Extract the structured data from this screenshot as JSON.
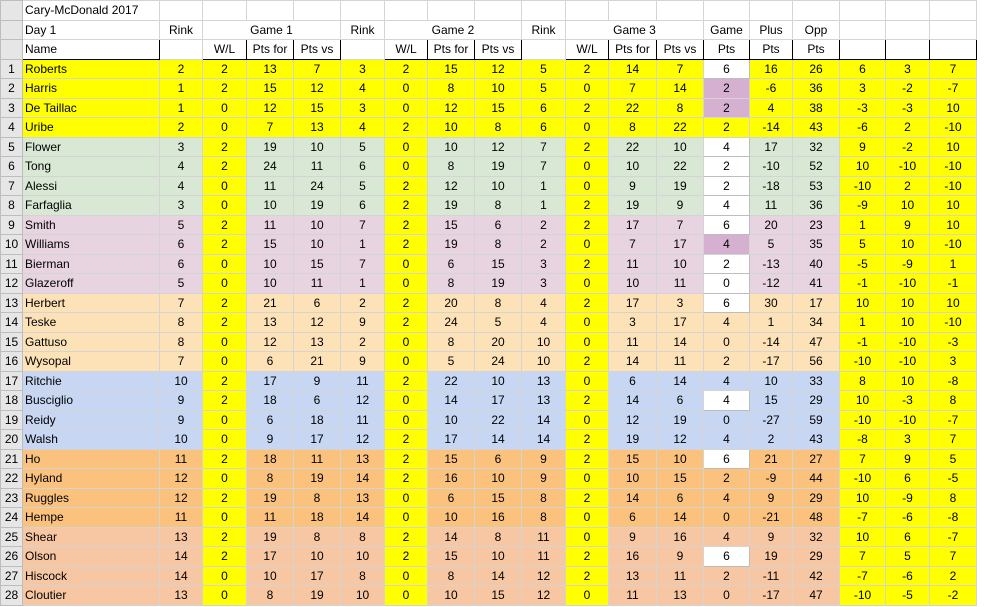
{
  "title_row": {
    "title": "Cary-McDonald 2017"
  },
  "header1": {
    "day": "Day 1",
    "rink1": "Rink",
    "game1": "Game 1",
    "rink2": "Rink",
    "game2": "Game 2",
    "rink3": "Rink",
    "game3": "Game 3",
    "game": "Game",
    "plus": "Plus",
    "opp": "Opp"
  },
  "header2": {
    "name": "Name",
    "wl1": "W/L",
    "pf1": "Pts for",
    "pv1": "Pts vs",
    "wl2": "W/L",
    "pf2": "Pts for",
    "pv2": "Pts vs",
    "wl3": "W/L",
    "pf3": "Pts for",
    "pv3": "Pts vs",
    "pts": "Pts",
    "plus_pts": "Pts",
    "opp_pts": "Pts"
  },
  "colors": {
    "green": "#d8e8d4",
    "pink": "#e8d4e0",
    "peach": "#fde2b8",
    "blue": "#c7d6f2",
    "orange": "#fbc27e",
    "salmon": "#f7c7a3",
    "yellow": "#ffff00",
    "mauve": "#d6b0d0",
    "white": "#ffffff"
  },
  "rows": [
    {
      "n": "1",
      "name": "Roberts",
      "v": [
        "2",
        "2",
        "13",
        "7",
        "3",
        "2",
        "15",
        "12",
        "5",
        "2",
        "14",
        "7",
        "6",
        "16",
        "26",
        "6",
        "3",
        "7"
      ],
      "group": "yellow",
      "pts_bg": "white"
    },
    {
      "n": "2",
      "name": "Harris",
      "v": [
        "1",
        "2",
        "15",
        "12",
        "4",
        "0",
        "8",
        "10",
        "5",
        "0",
        "7",
        "14",
        "2",
        "-6",
        "36",
        "3",
        "-2",
        "-7"
      ],
      "group": "yellow",
      "pts_bg": "mauve"
    },
    {
      "n": "3",
      "name": "De Taillac",
      "v": [
        "1",
        "0",
        "12",
        "15",
        "3",
        "0",
        "12",
        "15",
        "6",
        "2",
        "22",
        "8",
        "2",
        "4",
        "38",
        "-3",
        "-3",
        "10"
      ],
      "group": "yellow",
      "pts_bg": "mauve"
    },
    {
      "n": "4",
      "name": "Uribe",
      "v": [
        "2",
        "0",
        "7",
        "13",
        "4",
        "2",
        "10",
        "8",
        "6",
        "0",
        "8",
        "22",
        "2",
        "-14",
        "43",
        "-6",
        "2",
        "-10"
      ],
      "group": "yellow",
      "pts_bg": "yellow"
    },
    {
      "n": "5",
      "name": "Flower",
      "v": [
        "3",
        "2",
        "19",
        "10",
        "5",
        "0",
        "10",
        "12",
        "7",
        "2",
        "22",
        "10",
        "4",
        "17",
        "32",
        "9",
        "-2",
        "10"
      ],
      "group": "green",
      "pts_bg": "white"
    },
    {
      "n": "6",
      "name": "Tong",
      "v": [
        "4",
        "2",
        "24",
        "11",
        "6",
        "0",
        "8",
        "19",
        "7",
        "0",
        "10",
        "22",
        "2",
        "-10",
        "52",
        "10",
        "-10",
        "-10"
      ],
      "group": "green",
      "pts_bg": "white"
    },
    {
      "n": "7",
      "name": "Alessi",
      "v": [
        "4",
        "0",
        "11",
        "24",
        "5",
        "2",
        "12",
        "10",
        "1",
        "0",
        "9",
        "19",
        "2",
        "-18",
        "53",
        "-10",
        "2",
        "-10"
      ],
      "group": "green",
      "pts_bg": "white"
    },
    {
      "n": "8",
      "name": "Farfaglia",
      "v": [
        "3",
        "0",
        "10",
        "19",
        "6",
        "2",
        "19",
        "8",
        "1",
        "2",
        "19",
        "9",
        "4",
        "11",
        "36",
        "-9",
        "10",
        "10"
      ],
      "group": "green",
      "pts_bg": "white"
    },
    {
      "n": "9",
      "name": "Smith",
      "v": [
        "5",
        "2",
        "11",
        "10",
        "7",
        "2",
        "15",
        "6",
        "2",
        "2",
        "17",
        "7",
        "6",
        "20",
        "23",
        "1",
        "9",
        "10"
      ],
      "group": "pink",
      "pts_bg": "white"
    },
    {
      "n": "10",
      "name": "Williams",
      "v": [
        "6",
        "2",
        "15",
        "10",
        "1",
        "2",
        "19",
        "8",
        "2",
        "0",
        "7",
        "17",
        "4",
        "5",
        "35",
        "5",
        "10",
        "-10"
      ],
      "group": "pink",
      "pts_bg": "mauve"
    },
    {
      "n": "11",
      "name": "Bierman",
      "v": [
        "6",
        "0",
        "10",
        "15",
        "7",
        "0",
        "6",
        "15",
        "3",
        "2",
        "11",
        "10",
        "2",
        "-13",
        "40",
        "-5",
        "-9",
        "1"
      ],
      "group": "pink",
      "pts_bg": "white"
    },
    {
      "n": "12",
      "name": "Glazeroff",
      "v": [
        "5",
        "0",
        "10",
        "11",
        "1",
        "0",
        "8",
        "19",
        "3",
        "0",
        "10",
        "11",
        "0",
        "-12",
        "41",
        "-1",
        "-10",
        "-1"
      ],
      "group": "pink",
      "pts_bg": "white"
    },
    {
      "n": "13",
      "name": "Herbert",
      "v": [
        "7",
        "2",
        "21",
        "6",
        "2",
        "2",
        "20",
        "8",
        "4",
        "2",
        "17",
        "3",
        "6",
        "30",
        "17",
        "10",
        "10",
        "10"
      ],
      "group": "peach",
      "pts_bg": "white"
    },
    {
      "n": "14",
      "name": "Teske",
      "v": [
        "8",
        "2",
        "13",
        "12",
        "9",
        "2",
        "24",
        "5",
        "4",
        "0",
        "3",
        "17",
        "4",
        "1",
        "34",
        "1",
        "10",
        "-10"
      ],
      "group": "peach",
      "pts_bg": "peach"
    },
    {
      "n": "15",
      "name": "Gattuso",
      "v": [
        "8",
        "0",
        "12",
        "13",
        "2",
        "0",
        "8",
        "20",
        "10",
        "0",
        "11",
        "14",
        "0",
        "-14",
        "47",
        "-1",
        "-10",
        "-3"
      ],
      "group": "peach",
      "pts_bg": "peach"
    },
    {
      "n": "16",
      "name": "Wysopal",
      "v": [
        "7",
        "0",
        "6",
        "21",
        "9",
        "0",
        "5",
        "24",
        "10",
        "2",
        "14",
        "11",
        "2",
        "-17",
        "56",
        "-10",
        "-10",
        "3"
      ],
      "group": "peach",
      "pts_bg": "peach"
    },
    {
      "n": "17",
      "name": "Ritchie",
      "v": [
        "10",
        "2",
        "17",
        "9",
        "11",
        "2",
        "22",
        "10",
        "13",
        "0",
        "6",
        "14",
        "4",
        "10",
        "33",
        "8",
        "10",
        "-8"
      ],
      "group": "blue",
      "pts_bg": "blue"
    },
    {
      "n": "18",
      "name": "Busciglio",
      "v": [
        "9",
        "2",
        "18",
        "6",
        "12",
        "0",
        "14",
        "17",
        "13",
        "2",
        "14",
        "6",
        "4",
        "15",
        "29",
        "10",
        "-3",
        "8"
      ],
      "group": "blue",
      "pts_bg": "white"
    },
    {
      "n": "19",
      "name": "Reidy",
      "v": [
        "9",
        "0",
        "6",
        "18",
        "11",
        "0",
        "10",
        "22",
        "14",
        "0",
        "12",
        "19",
        "0",
        "-27",
        "59",
        "-10",
        "-10",
        "-7"
      ],
      "group": "blue",
      "pts_bg": "blue"
    },
    {
      "n": "20",
      "name": "Walsh",
      "v": [
        "10",
        "0",
        "9",
        "17",
        "12",
        "2",
        "17",
        "14",
        "14",
        "2",
        "19",
        "12",
        "4",
        "2",
        "43",
        "-8",
        "3",
        "7"
      ],
      "group": "blue",
      "pts_bg": "blue"
    },
    {
      "n": "21",
      "name": "Ho",
      "v": [
        "11",
        "2",
        "18",
        "11",
        "13",
        "2",
        "15",
        "6",
        "9",
        "2",
        "15",
        "10",
        "6",
        "21",
        "27",
        "7",
        "9",
        "5"
      ],
      "group": "orange",
      "pts_bg": "white"
    },
    {
      "n": "22",
      "name": "Hyland",
      "v": [
        "12",
        "0",
        "8",
        "19",
        "14",
        "2",
        "16",
        "10",
        "9",
        "0",
        "10",
        "15",
        "2",
        "-9",
        "44",
        "-10",
        "6",
        "-5"
      ],
      "group": "orange",
      "pts_bg": "orange"
    },
    {
      "n": "23",
      "name": "Ruggles",
      "v": [
        "12",
        "2",
        "19",
        "8",
        "13",
        "0",
        "6",
        "15",
        "8",
        "2",
        "14",
        "6",
        "4",
        "9",
        "29",
        "10",
        "-9",
        "8"
      ],
      "group": "orange",
      "pts_bg": "orange"
    },
    {
      "n": "24",
      "name": "Hempe",
      "v": [
        "11",
        "0",
        "11",
        "18",
        "14",
        "0",
        "10",
        "16",
        "8",
        "0",
        "6",
        "14",
        "0",
        "-21",
        "48",
        "-7",
        "-6",
        "-8"
      ],
      "group": "orange",
      "pts_bg": "orange"
    },
    {
      "n": "25",
      "name": "Shear",
      "v": [
        "13",
        "2",
        "19",
        "8",
        "8",
        "2",
        "14",
        "8",
        "11",
        "0",
        "9",
        "16",
        "4",
        "9",
        "32",
        "10",
        "6",
        "-7"
      ],
      "group": "salmon",
      "pts_bg": "salmon"
    },
    {
      "n": "26",
      "name": "Olson",
      "v": [
        "14",
        "2",
        "17",
        "10",
        "10",
        "2",
        "15",
        "10",
        "11",
        "2",
        "16",
        "9",
        "6",
        "19",
        "29",
        "7",
        "5",
        "7"
      ],
      "group": "salmon",
      "pts_bg": "white"
    },
    {
      "n": "27",
      "name": "Hiscock",
      "v": [
        "14",
        "0",
        "10",
        "17",
        "8",
        "0",
        "8",
        "14",
        "12",
        "2",
        "13",
        "11",
        "2",
        "-11",
        "42",
        "-7",
        "-6",
        "2"
      ],
      "group": "salmon",
      "pts_bg": "salmon"
    },
    {
      "n": "28",
      "name": "Cloutier",
      "v": [
        "13",
        "0",
        "8",
        "19",
        "10",
        "0",
        "10",
        "15",
        "12",
        "0",
        "11",
        "13",
        "0",
        "-17",
        "47",
        "-10",
        "-5",
        "-2"
      ],
      "group": "salmon",
      "pts_bg": "salmon"
    }
  ]
}
